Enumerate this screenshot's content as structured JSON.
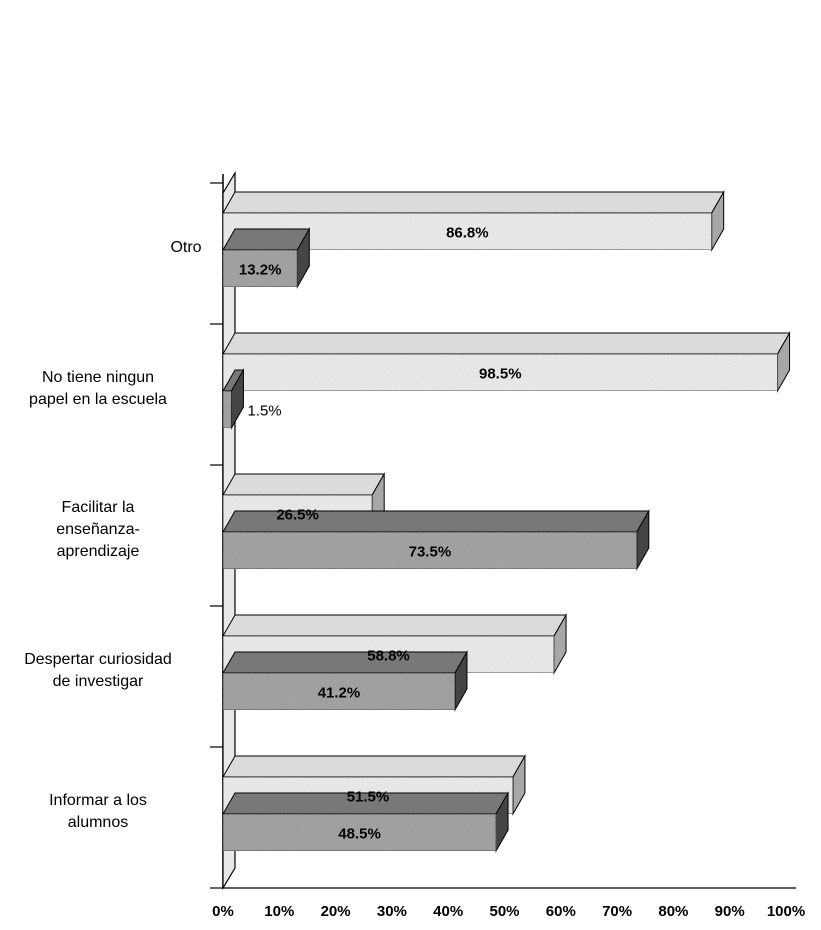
{
  "chart_data": {
    "type": "bar",
    "orientation": "horizontal",
    "style": "3d",
    "categories": [
      [
        "Otro"
      ],
      [
        "No tiene ningun",
        "papel en la escuela"
      ],
      [
        "Facilitar la",
        "enseñanza-",
        "aprendizaje"
      ],
      [
        "Despertar curiosidad",
        "de investigar"
      ],
      [
        "Informar a los",
        "alumnos"
      ]
    ],
    "series": [
      {
        "values": [
          86.8,
          98.5,
          26.5,
          58.8,
          51.5
        ],
        "labels": [
          "86.8%",
          "98.5%",
          "26.5%",
          "58.8%",
          "51.5%"
        ],
        "color": "#eeeeee"
      },
      {
        "values": [
          13.2,
          1.5,
          73.5,
          41.2,
          48.5
        ],
        "labels": [
          "13.2%",
          "1.5%",
          "73.5%",
          "41.2%",
          "48.5%"
        ],
        "color": "#9a9a9a"
      }
    ],
    "xlim": [
      0,
      100
    ],
    "xticks": [
      "0%",
      "10%",
      "20%",
      "30%",
      "40%",
      "50%",
      "60%",
      "70%",
      "80%",
      "90%",
      "100%"
    ],
    "grid": false,
    "title": "",
    "xlabel": "",
    "ylabel": ""
  }
}
